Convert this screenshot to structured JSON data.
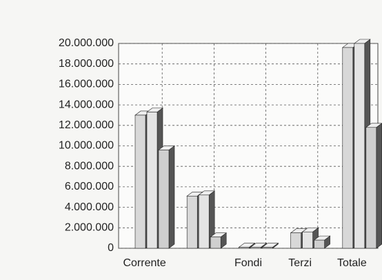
{
  "chart_data": {
    "type": "bar3d",
    "categories": [
      "Corrente",
      null,
      "Fondi",
      "Terzi",
      "Totale"
    ],
    "series": [
      {
        "color": "#d8d8d8",
        "values": [
          13000000,
          5100000,
          100000,
          1500000,
          19600000
        ]
      },
      {
        "color": "#e4e4e4",
        "values": [
          13300000,
          5200000,
          100000,
          1600000,
          20000000
        ]
      },
      {
        "color": "#cfcfcf",
        "values": [
          9600000,
          1100000,
          100000,
          800000,
          11800000
        ]
      }
    ],
    "ylim": [
      0,
      20000000
    ],
    "yticks": [
      0,
      {
        "value": 2000000,
        "label": "2.000.000"
      },
      {
        "value": 4000000,
        "label": "4.000.000"
      },
      {
        "value": 6000000,
        "label": "6.000.000"
      },
      {
        "value": 8000000,
        "label": "8.000.000"
      },
      {
        "value": 10000000,
        "label": "10.000.000"
      },
      {
        "value": 12000000,
        "label": "12.000.000"
      },
      {
        "value": 14000000,
        "label": "14.000.000"
      },
      {
        "value": 16000000,
        "label": "16.000.000"
      },
      {
        "value": 18000000,
        "label": "18.000.000"
      },
      {
        "value": 20000000,
        "label": "20.000.000"
      }
    ],
    "grid": true
  }
}
